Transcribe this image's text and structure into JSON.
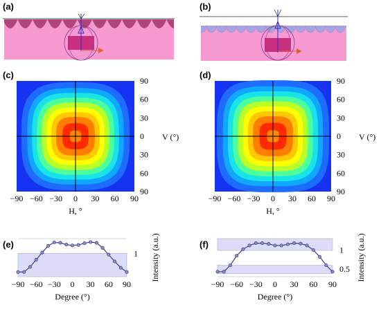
{
  "panels": {
    "a": {
      "label": "(a)"
    },
    "b": {
      "label": "(b)"
    },
    "c": {
      "label": "(c)"
    },
    "d": {
      "label": "(d)"
    },
    "e": {
      "label": "(e)"
    },
    "f": {
      "label": "(f)"
    }
  },
  "colors": {
    "substrate": "#f79ad2",
    "lens_a": "#b0457e",
    "lens_b": "#a7a2e2",
    "axis_arrow": "#e3613c",
    "curve": "#3a3f80",
    "band": "#dcdcf8"
  },
  "chart_data": [
    {
      "panel": "c",
      "type": "heatmap",
      "xlabel": "H, °",
      "ylabel": "V (°)",
      "x_ticks": [
        "−90",
        "−60",
        "−30",
        "0",
        "30",
        "60",
        "90"
      ],
      "y_ticks": [
        "90",
        "60",
        "30",
        "0",
        "30",
        "60",
        "90"
      ],
      "xlim": [
        -90,
        90
      ],
      "ylim": [
        -90,
        90
      ],
      "shape_exponent": 3.2,
      "scale": 0.82
    },
    {
      "panel": "d",
      "type": "heatmap",
      "xlabel": "H, °",
      "ylabel": "V (°)",
      "x_ticks": [
        "−90",
        "−60",
        "−30",
        "0",
        "30",
        "60",
        "90"
      ],
      "y_ticks": [
        "90",
        "60",
        "30",
        "0",
        "30",
        "60",
        "90"
      ],
      "xlim": [
        -90,
        90
      ],
      "ylim": [
        -90,
        90
      ],
      "shape_exponent": 3.6,
      "scale": 0.86
    },
    {
      "panel": "e",
      "type": "line",
      "xlabel": "Degree (°)",
      "ylabel": "Intensity (a.u.)",
      "x_ticks": [
        "−90",
        "−60",
        "−30",
        "0",
        "30",
        "60",
        "90"
      ],
      "y_ticks": [
        "1"
      ],
      "y_tick_values": [
        1
      ],
      "xlim": [
        -90,
        90
      ],
      "ylim": [
        0.45,
        1.35
      ],
      "band": [
        0.45,
        1.0
      ],
      "x": [
        -90,
        -80,
        -70,
        -60,
        -50,
        -40,
        -30,
        -20,
        -10,
        0,
        10,
        20,
        30,
        40,
        50,
        60,
        70,
        80,
        90
      ],
      "values": [
        0.56,
        0.56,
        0.68,
        0.85,
        1.02,
        1.18,
        1.26,
        1.25,
        1.21,
        1.19,
        1.2,
        1.24,
        1.27,
        1.25,
        1.13,
        0.97,
        0.81,
        0.66,
        0.56
      ]
    },
    {
      "panel": "f",
      "type": "line",
      "xlabel": "Degree (°)",
      "ylabel": "Intensity (a.u.)",
      "x_ticks": [
        "−90",
        "−60",
        "−30",
        "0",
        "30",
        "60",
        "90"
      ],
      "y_ticks": [
        "1",
        "0.5"
      ],
      "y_tick_values": [
        1,
        0.5
      ],
      "xlim": [
        -90,
        90
      ],
      "ylim": [
        0.3,
        1.3
      ],
      "bands": [
        [
          0.99,
          1.3
        ],
        [
          0.38,
          0.6
        ]
      ],
      "x": [
        -90,
        -80,
        -70,
        -60,
        -50,
        -40,
        -30,
        -20,
        -10,
        0,
        10,
        20,
        30,
        40,
        50,
        60,
        70,
        80,
        90
      ],
      "values": [
        0.43,
        0.43,
        0.6,
        0.85,
        1.02,
        1.12,
        1.18,
        1.18,
        1.16,
        1.12,
        1.12,
        1.15,
        1.18,
        1.17,
        1.12,
        1.0,
        0.82,
        0.6,
        0.43
      ]
    }
  ]
}
